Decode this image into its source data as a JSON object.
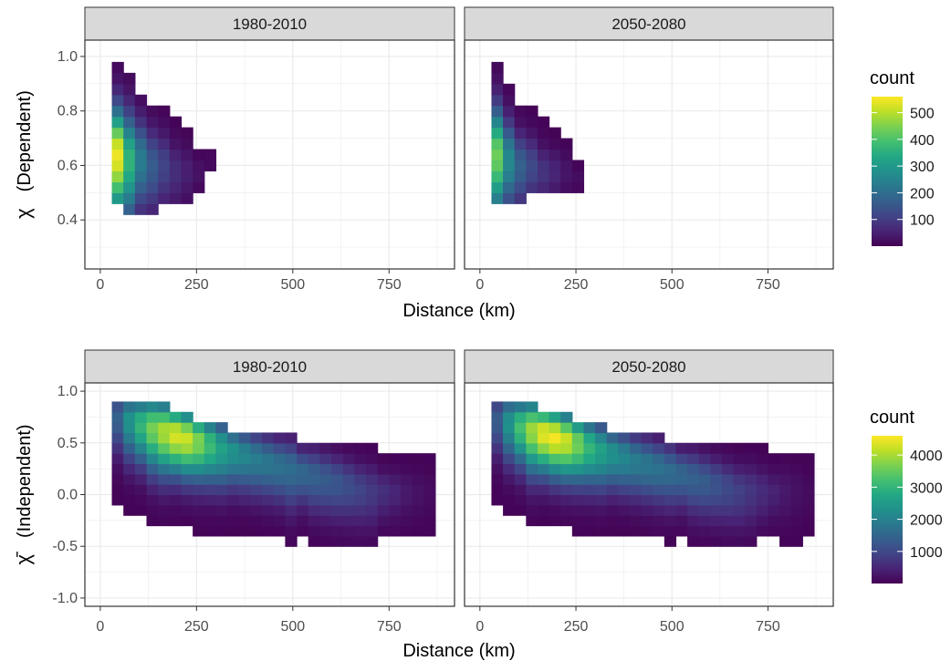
{
  "chart_data": [
    {
      "type": "heatmap",
      "row": "top",
      "xlabel": "Distance (km)",
      "ylabel_symbol": "χ",
      "ylabel_text": "(Dependent)",
      "xticks": [
        0,
        250,
        500,
        750
      ],
      "yticks": [
        0.4,
        0.6,
        0.8,
        1.0
      ],
      "xlim": [
        -40,
        920
      ],
      "ylim": [
        0.22,
        1.06
      ],
      "legend": {
        "title": "count",
        "ticks": [
          100,
          200,
          300,
          400,
          500
        ],
        "min": 0,
        "max": 560,
        "placement": "right"
      },
      "panels": [
        {
          "strip": "1980-2010",
          "bin_width": [
            30,
            0.04
          ],
          "columns": [
            {
              "x": 45,
              "y_range": [
                0.46,
                0.98
              ],
              "peak_y": 0.64,
              "peak": 540
            },
            {
              "x": 75,
              "y_range": [
                0.42,
                0.94
              ],
              "peak_y": 0.62,
              "peak": 360
            },
            {
              "x": 105,
              "y_range": [
                0.42,
                0.86
              ],
              "peak_y": 0.62,
              "peak": 230
            },
            {
              "x": 135,
              "y_range": [
                0.42,
                0.82
              ],
              "peak_y": 0.6,
              "peak": 160
            },
            {
              "x": 165,
              "y_range": [
                0.46,
                0.82
              ],
              "peak_y": 0.6,
              "peak": 110
            },
            {
              "x": 195,
              "y_range": [
                0.46,
                0.78
              ],
              "peak_y": 0.58,
              "peak": 70
            },
            {
              "x": 225,
              "y_range": [
                0.46,
                0.74
              ],
              "peak_y": 0.58,
              "peak": 45
            },
            {
              "x": 255,
              "y_range": [
                0.5,
                0.66
              ],
              "peak_y": 0.58,
              "peak": 25
            },
            {
              "x": 285,
              "y_range": [
                0.58,
                0.66
              ],
              "peak_y": 0.62,
              "peak": 15
            }
          ]
        },
        {
          "strip": "2050-2080",
          "bin_width": [
            30,
            0.04
          ],
          "columns": [
            {
              "x": 45,
              "y_range": [
                0.46,
                0.98
              ],
              "peak_y": 0.64,
              "peak": 430
            },
            {
              "x": 75,
              "y_range": [
                0.46,
                0.9
              ],
              "peak_y": 0.62,
              "peak": 260
            },
            {
              "x": 105,
              "y_range": [
                0.46,
                0.82
              ],
              "peak_y": 0.6,
              "peak": 170
            },
            {
              "x": 135,
              "y_range": [
                0.5,
                0.82
              ],
              "peak_y": 0.6,
              "peak": 120
            },
            {
              "x": 165,
              "y_range": [
                0.5,
                0.78
              ],
              "peak_y": 0.58,
              "peak": 80
            },
            {
              "x": 195,
              "y_range": [
                0.5,
                0.74
              ],
              "peak_y": 0.58,
              "peak": 55
            },
            {
              "x": 225,
              "y_range": [
                0.5,
                0.7
              ],
              "peak_y": 0.58,
              "peak": 30
            },
            {
              "x": 255,
              "y_range": [
                0.5,
                0.62
              ],
              "peak_y": 0.56,
              "peak": 15
            }
          ]
        }
      ]
    },
    {
      "type": "heatmap",
      "row": "bottom",
      "xlabel": "Distance (km)",
      "ylabel_symbol": "χ̄",
      "ylabel_text": "(Independent)",
      "xticks": [
        0,
        250,
        500,
        750
      ],
      "yticks": [
        -1.0,
        -0.5,
        0.0,
        0.5,
        1.0
      ],
      "xlim": [
        -40,
        920
      ],
      "ylim": [
        -1.08,
        1.08
      ],
      "legend": {
        "title": "count",
        "ticks": [
          1000,
          2000,
          3000,
          4000
        ],
        "min": 0,
        "max": 4600,
        "placement": "right"
      },
      "panels": [
        {
          "strip": "1980-2010",
          "bin_width": [
            30,
            0.1
          ],
          "ridge": {
            "y_at_0": 0.8,
            "slope": -0.0011,
            "y_min": 0.04
          },
          "columns": [
            {
              "x": 45,
              "y_range": [
                -0.1,
                0.9
              ],
              "peak": 1400
            },
            {
              "x": 75,
              "y_range": [
                -0.2,
                0.9
              ],
              "peak": 2300
            },
            {
              "x": 105,
              "y_range": [
                -0.2,
                0.9
              ],
              "peak": 3000
            },
            {
              "x": 135,
              "y_range": [
                -0.3,
                0.9
              ],
              "peak": 3600
            },
            {
              "x": 165,
              "y_range": [
                -0.3,
                0.9
              ],
              "peak": 4000
            },
            {
              "x": 195,
              "y_range": [
                -0.3,
                0.8
              ],
              "peak": 4300
            },
            {
              "x": 225,
              "y_range": [
                -0.3,
                0.8
              ],
              "peak": 4200
            },
            {
              "x": 255,
              "y_range": [
                -0.4,
                0.7
              ],
              "peak": 3700
            },
            {
              "x": 285,
              "y_range": [
                -0.4,
                0.7
              ],
              "peak": 3100
            },
            {
              "x": 315,
              "y_range": [
                -0.4,
                0.7
              ],
              "peak": 2600
            },
            {
              "x": 345,
              "y_range": [
                -0.4,
                0.6
              ],
              "peak": 2300
            },
            {
              "x": 375,
              "y_range": [
                -0.4,
                0.6
              ],
              "peak": 2100
            },
            {
              "x": 405,
              "y_range": [
                -0.4,
                0.6
              ],
              "peak": 1900
            },
            {
              "x": 435,
              "y_range": [
                -0.4,
                0.6
              ],
              "peak": 1800
            },
            {
              "x": 465,
              "y_range": [
                -0.4,
                0.6
              ],
              "peak": 1700
            },
            {
              "x": 495,
              "y_range": [
                -0.5,
                0.6
              ],
              "peak": 1600
            },
            {
              "x": 525,
              "y_range": [
                -0.4,
                0.5
              ],
              "peak": 1500
            },
            {
              "x": 555,
              "y_range": [
                -0.5,
                0.5
              ],
              "peak": 1400
            },
            {
              "x": 585,
              "y_range": [
                -0.5,
                0.5
              ],
              "peak": 1300
            },
            {
              "x": 615,
              "y_range": [
                -0.5,
                0.5
              ],
              "peak": 1200
            },
            {
              "x": 645,
              "y_range": [
                -0.5,
                0.5
              ],
              "peak": 1050
            },
            {
              "x": 675,
              "y_range": [
                -0.5,
                0.5
              ],
              "peak": 900
            },
            {
              "x": 705,
              "y_range": [
                -0.5,
                0.5
              ],
              "peak": 750
            },
            {
              "x": 735,
              "y_range": [
                -0.4,
                0.4
              ],
              "peak": 600
            },
            {
              "x": 765,
              "y_range": [
                -0.4,
                0.4
              ],
              "peak": 450
            },
            {
              "x": 795,
              "y_range": [
                -0.4,
                0.4
              ],
              "peak": 300
            },
            {
              "x": 825,
              "y_range": [
                -0.4,
                0.4
              ],
              "peak": 200
            },
            {
              "x": 855,
              "y_range": [
                -0.4,
                0.4
              ],
              "peak": 120
            }
          ]
        },
        {
          "strip": "2050-2080",
          "bin_width": [
            30,
            0.1
          ],
          "ridge": {
            "y_at_0": 0.78,
            "slope": -0.0011,
            "y_min": 0.04
          },
          "columns": [
            {
              "x": 45,
              "y_range": [
                -0.1,
                0.9
              ],
              "peak": 1300
            },
            {
              "x": 75,
              "y_range": [
                -0.2,
                0.9
              ],
              "peak": 2300
            },
            {
              "x": 105,
              "y_range": [
                -0.2,
                0.9
              ],
              "peak": 3200
            },
            {
              "x": 135,
              "y_range": [
                -0.3,
                0.9
              ],
              "peak": 3900
            },
            {
              "x": 165,
              "y_range": [
                -0.3,
                0.8
              ],
              "peak": 4400
            },
            {
              "x": 195,
              "y_range": [
                -0.3,
                0.8
              ],
              "peak": 4500
            },
            {
              "x": 225,
              "y_range": [
                -0.3,
                0.8
              ],
              "peak": 4200
            },
            {
              "x": 255,
              "y_range": [
                -0.4,
                0.7
              ],
              "peak": 3600
            },
            {
              "x": 285,
              "y_range": [
                -0.4,
                0.7
              ],
              "peak": 3000
            },
            {
              "x": 315,
              "y_range": [
                -0.4,
                0.7
              ],
              "peak": 2600
            },
            {
              "x": 345,
              "y_range": [
                -0.4,
                0.6
              ],
              "peak": 2300
            },
            {
              "x": 375,
              "y_range": [
                -0.4,
                0.6
              ],
              "peak": 2100
            },
            {
              "x": 405,
              "y_range": [
                -0.4,
                0.6
              ],
              "peak": 1900
            },
            {
              "x": 435,
              "y_range": [
                -0.4,
                0.6
              ],
              "peak": 1800
            },
            {
              "x": 465,
              "y_range": [
                -0.4,
                0.6
              ],
              "peak": 1700
            },
            {
              "x": 495,
              "y_range": [
                -0.5,
                0.5
              ],
              "peak": 1600
            },
            {
              "x": 525,
              "y_range": [
                -0.4,
                0.5
              ],
              "peak": 1500
            },
            {
              "x": 555,
              "y_range": [
                -0.5,
                0.5
              ],
              "peak": 1400
            },
            {
              "x": 585,
              "y_range": [
                -0.5,
                0.5
              ],
              "peak": 1300
            },
            {
              "x": 615,
              "y_range": [
                -0.5,
                0.5
              ],
              "peak": 1150
            },
            {
              "x": 645,
              "y_range": [
                -0.5,
                0.5
              ],
              "peak": 1000
            },
            {
              "x": 675,
              "y_range": [
                -0.5,
                0.5
              ],
              "peak": 850
            },
            {
              "x": 705,
              "y_range": [
                -0.5,
                0.5
              ],
              "peak": 700
            },
            {
              "x": 735,
              "y_range": [
                -0.4,
                0.5
              ],
              "peak": 550
            },
            {
              "x": 765,
              "y_range": [
                -0.4,
                0.4
              ],
              "peak": 400
            },
            {
              "x": 795,
              "y_range": [
                -0.5,
                0.4
              ],
              "peak": 280
            },
            {
              "x": 825,
              "y_range": [
                -0.5,
                0.4
              ],
              "peak": 180
            },
            {
              "x": 855,
              "y_range": [
                -0.4,
                0.4
              ],
              "peak": 110
            }
          ]
        }
      ]
    }
  ]
}
